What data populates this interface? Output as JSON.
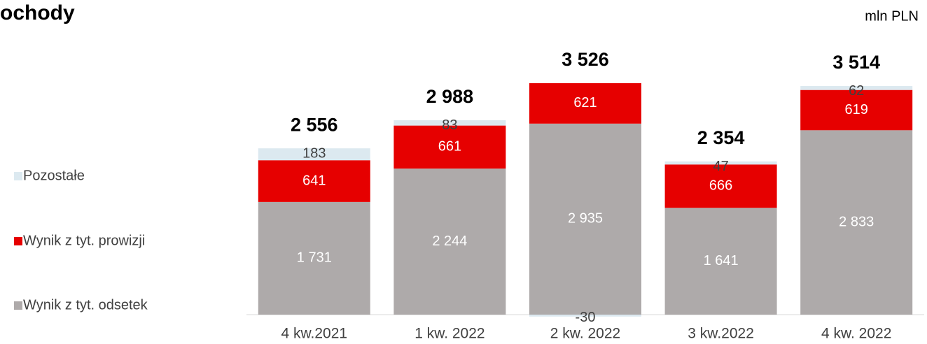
{
  "chart_data": {
    "type": "stacked_bar",
    "title": "ochody",
    "unit_label": "mln PLN",
    "categories": [
      "4 kw.2021",
      "1 kw. 2022",
      "2 kw. 2022",
      "3 kw.2022",
      "4 kw. 2022"
    ],
    "series": [
      {
        "name": "Wynik z tyt. odsetek",
        "color": "#aeaaaa",
        "values": [
          1731,
          2244,
          2935,
          1641,
          2833
        ],
        "value_labels": [
          "1 731",
          "2 244",
          "2 935",
          "1 641",
          "2 833"
        ]
      },
      {
        "name": "Wynik z tyt. prowizji",
        "color": "#e60000",
        "values": [
          641,
          661,
          621,
          666,
          619
        ]
      },
      {
        "name": "Pozostałe",
        "color": "#dce9f0",
        "values": [
          183,
          83,
          -30,
          47,
          62
        ]
      }
    ],
    "totals": [
      2556,
      2988,
      3526,
      2354,
      3514
    ],
    "totals_labels": [
      "2 556",
      "2 988",
      "3 526",
      "2 354",
      "3 514"
    ],
    "legend": "left"
  }
}
